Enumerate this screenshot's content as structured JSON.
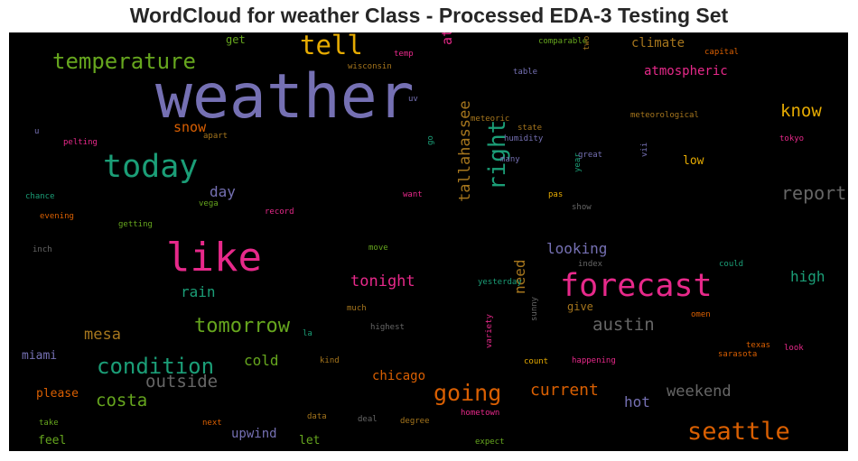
{
  "chart_data": {
    "type": "wordcloud",
    "title": "WordCloud for weather Class - Processed EDA-3 Testing Set",
    "background": "#000000",
    "palette": [
      "#7570b3",
      "#e7298a",
      "#1b9e77",
      "#d95f02",
      "#66a61e",
      "#e6ab02",
      "#a6761d",
      "#666666"
    ],
    "words": [
      {
        "text": "weather",
        "c": 0
      },
      {
        "text": "like",
        "c": 1
      },
      {
        "text": "forecast",
        "c": 1
      },
      {
        "text": "today",
        "c": 2
      },
      {
        "text": "tell",
        "c": 5
      },
      {
        "text": "seattle",
        "c": 3
      },
      {
        "text": "temperature",
        "c": 4
      },
      {
        "text": "condition",
        "c": 2
      },
      {
        "text": "right",
        "c": 2
      },
      {
        "text": "going",
        "c": 3
      },
      {
        "text": "tomorrow",
        "c": 4
      },
      {
        "text": "report",
        "c": 7
      },
      {
        "text": "austin",
        "c": 7
      },
      {
        "text": "tallahassee",
        "c": 6
      },
      {
        "text": "outside",
        "c": 7
      },
      {
        "text": "costa",
        "c": 4
      },
      {
        "text": "know",
        "c": 5
      },
      {
        "text": "current",
        "c": 3
      },
      {
        "text": "weekend",
        "c": 7
      },
      {
        "text": "mesa",
        "c": 6
      },
      {
        "text": "tonight",
        "c": 1
      },
      {
        "text": "need",
        "c": 6
      },
      {
        "text": "looking",
        "c": 0
      },
      {
        "text": "high",
        "c": 2
      },
      {
        "text": "rain",
        "c": 2
      },
      {
        "text": "cold",
        "c": 4
      },
      {
        "text": "atlanta",
        "c": 1
      },
      {
        "text": "atmospheric",
        "c": 1
      },
      {
        "text": "climate",
        "c": 6
      },
      {
        "text": "day",
        "c": 0
      },
      {
        "text": "snow",
        "c": 3
      },
      {
        "text": "hot",
        "c": 0
      },
      {
        "text": "upwind",
        "c": 0
      },
      {
        "text": "chicago",
        "c": 3
      },
      {
        "text": "please",
        "c": 3
      },
      {
        "text": "miami",
        "c": 0
      },
      {
        "text": "feel",
        "c": 4
      },
      {
        "text": "let",
        "c": 4
      },
      {
        "text": "low",
        "c": 5
      },
      {
        "text": "give",
        "c": 6
      },
      {
        "text": "get",
        "c": 4
      },
      {
        "text": "comparable",
        "c": 4
      },
      {
        "text": "two",
        "c": 6
      },
      {
        "text": "capital",
        "c": 3
      },
      {
        "text": "temp",
        "c": 1
      },
      {
        "text": "wisconsin",
        "c": 6
      },
      {
        "text": "table",
        "c": 0
      },
      {
        "text": "uv",
        "c": 0
      },
      {
        "text": "meteoric",
        "c": 6
      },
      {
        "text": "meteorological",
        "c": 6
      },
      {
        "text": "state",
        "c": 6
      },
      {
        "text": "humidity",
        "c": 0
      },
      {
        "text": "tokyo",
        "c": 1
      },
      {
        "text": "u",
        "c": 0
      },
      {
        "text": "apart",
        "c": 6
      },
      {
        "text": "pelting",
        "c": 1
      },
      {
        "text": "go",
        "c": 2
      },
      {
        "text": "great",
        "c": 0
      },
      {
        "text": "many",
        "c": 0
      },
      {
        "text": "vii",
        "c": 0
      },
      {
        "text": "year",
        "c": 2
      },
      {
        "text": "want",
        "c": 1
      },
      {
        "text": "pas",
        "c": 5
      },
      {
        "text": "show",
        "c": 7
      },
      {
        "text": "chance",
        "c": 2
      },
      {
        "text": "vega",
        "c": 4
      },
      {
        "text": "record",
        "c": 1
      },
      {
        "text": "evening",
        "c": 3
      },
      {
        "text": "getting",
        "c": 4
      },
      {
        "text": "inch",
        "c": 7
      },
      {
        "text": "move",
        "c": 4
      },
      {
        "text": "index",
        "c": 7
      },
      {
        "text": "could",
        "c": 2
      },
      {
        "text": "yesterday",
        "c": 2
      },
      {
        "text": "much",
        "c": 6
      },
      {
        "text": "highest",
        "c": 7
      },
      {
        "text": "sunny",
        "c": 7
      },
      {
        "text": "omen",
        "c": 3
      },
      {
        "text": "la",
        "c": 2
      },
      {
        "text": "texas",
        "c": 3
      },
      {
        "text": "look",
        "c": 1
      },
      {
        "text": "sarasota",
        "c": 3
      },
      {
        "text": "kind",
        "c": 6
      },
      {
        "text": "variety",
        "c": 1
      },
      {
        "text": "count",
        "c": 5
      },
      {
        "text": "happening",
        "c": 1
      },
      {
        "text": "deal",
        "c": 7
      },
      {
        "text": "degree",
        "c": 6
      },
      {
        "text": "hometown",
        "c": 1
      },
      {
        "text": "data",
        "c": 6
      },
      {
        "text": "next",
        "c": 3
      },
      {
        "text": "take",
        "c": 4
      },
      {
        "text": "expect",
        "c": 4
      }
    ]
  }
}
